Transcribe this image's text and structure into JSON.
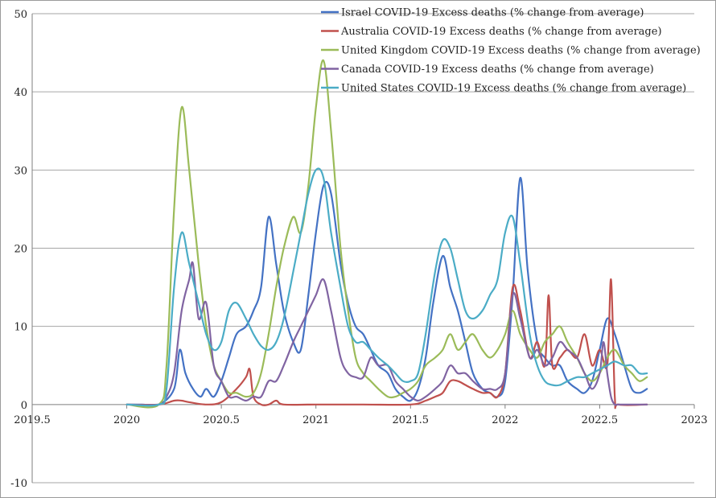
{
  "chart_data": {
    "type": "line",
    "title": "",
    "xlabel": "",
    "ylabel": "",
    "xlim": [
      2019.5,
      2023
    ],
    "ylim": [
      -10,
      50
    ],
    "x_ticks": [
      2019.5,
      2020,
      2020.5,
      2021,
      2021.5,
      2022,
      2022.5,
      2023
    ],
    "y_ticks": [
      -10,
      0,
      10,
      20,
      30,
      40,
      50
    ],
    "grid": "horizontal",
    "legend_position": "top-right",
    "series": [
      {
        "name": "Israel COVID-19 Excess deaths (% change from average)",
        "color": "#4472c4",
        "points": [
          [
            2020,
            0
          ],
          [
            2020.08,
            0
          ],
          [
            2020.17,
            0
          ],
          [
            2020.25,
            2
          ],
          [
            2020.28,
            7
          ],
          [
            2020.31,
            4
          ],
          [
            2020.35,
            2
          ],
          [
            2020.39,
            1
          ],
          [
            2020.42,
            2
          ],
          [
            2020.46,
            1
          ],
          [
            2020.5,
            3
          ],
          [
            2020.54,
            6
          ],
          [
            2020.58,
            9
          ],
          [
            2020.63,
            10
          ],
          [
            2020.67,
            12
          ],
          [
            2020.71,
            15
          ],
          [
            2020.75,
            24
          ],
          [
            2020.79,
            18
          ],
          [
            2020.83,
            12
          ],
          [
            2020.88,
            8
          ],
          [
            2020.92,
            7
          ],
          [
            2020.96,
            14
          ],
          [
            2021,
            22
          ],
          [
            2021.04,
            28
          ],
          [
            2021.08,
            27
          ],
          [
            2021.13,
            18
          ],
          [
            2021.17,
            13
          ],
          [
            2021.21,
            10
          ],
          [
            2021.25,
            9
          ],
          [
            2021.29,
            7
          ],
          [
            2021.33,
            5
          ],
          [
            2021.38,
            4
          ],
          [
            2021.42,
            2
          ],
          [
            2021.46,
            1
          ],
          [
            2021.5,
            0.5
          ],
          [
            2021.54,
            2
          ],
          [
            2021.58,
            6
          ],
          [
            2021.62,
            13
          ],
          [
            2021.67,
            19
          ],
          [
            2021.71,
            15
          ],
          [
            2021.75,
            12
          ],
          [
            2021.79,
            8
          ],
          [
            2021.83,
            4
          ],
          [
            2021.88,
            2
          ],
          [
            2021.92,
            1.5
          ],
          [
            2021.96,
            1
          ],
          [
            2022,
            3
          ],
          [
            2022.04,
            14
          ],
          [
            2022.08,
            29
          ],
          [
            2022.12,
            17
          ],
          [
            2022.17,
            8
          ],
          [
            2022.21,
            6
          ],
          [
            2022.25,
            5
          ],
          [
            2022.29,
            5
          ],
          [
            2022.33,
            3
          ],
          [
            2022.38,
            2
          ],
          [
            2022.42,
            1.5
          ],
          [
            2022.46,
            3
          ],
          [
            2022.5,
            7
          ],
          [
            2022.54,
            11
          ],
          [
            2022.58,
            9
          ],
          [
            2022.63,
            5
          ],
          [
            2022.67,
            2
          ],
          [
            2022.71,
            1.5
          ],
          [
            2022.75,
            2
          ]
        ]
      },
      {
        "name": "Australia COVID-19 Excess deaths (% change from average)",
        "color": "#c0504d",
        "points": [
          [
            2020,
            0
          ],
          [
            2020.17,
            0
          ],
          [
            2020.25,
            0.5
          ],
          [
            2020.29,
            0.5
          ],
          [
            2020.33,
            0.3
          ],
          [
            2020.42,
            0
          ],
          [
            2020.5,
            0.3
          ],
          [
            2020.58,
            2
          ],
          [
            2020.63,
            3.5
          ],
          [
            2020.65,
            4.5
          ],
          [
            2020.67,
            1
          ],
          [
            2020.71,
            0
          ],
          [
            2020.75,
            0
          ],
          [
            2020.79,
            0.5
          ],
          [
            2020.83,
            0
          ],
          [
            2021,
            0
          ],
          [
            2021.25,
            0
          ],
          [
            2021.5,
            0
          ],
          [
            2021.58,
            0.5
          ],
          [
            2021.63,
            1
          ],
          [
            2021.67,
            1.5
          ],
          [
            2021.71,
            3
          ],
          [
            2021.75,
            3
          ],
          [
            2021.79,
            2.5
          ],
          [
            2021.83,
            2
          ],
          [
            2021.88,
            1.5
          ],
          [
            2021.92,
            1.5
          ],
          [
            2021.96,
            1
          ],
          [
            2022,
            4
          ],
          [
            2022.04,
            15
          ],
          [
            2022.08,
            12
          ],
          [
            2022.13,
            6
          ],
          [
            2022.17,
            8
          ],
          [
            2022.21,
            5
          ],
          [
            2022.23,
            14
          ],
          [
            2022.25,
            5
          ],
          [
            2022.29,
            6
          ],
          [
            2022.33,
            7
          ],
          [
            2022.38,
            6
          ],
          [
            2022.42,
            9
          ],
          [
            2022.46,
            5
          ],
          [
            2022.5,
            7
          ],
          [
            2022.54,
            5
          ],
          [
            2022.56,
            16
          ],
          [
            2022.58,
            1
          ],
          [
            2022.6,
            0
          ],
          [
            2022.75,
            0
          ]
        ]
      },
      {
        "name": "United Kingdom COVID-19 Excess deaths (% change from average)",
        "color": "#9bbb59",
        "points": [
          [
            2020,
            0
          ],
          [
            2020.17,
            0
          ],
          [
            2020.21,
            5
          ],
          [
            2020.25,
            25
          ],
          [
            2020.29,
            38
          ],
          [
            2020.33,
            30
          ],
          [
            2020.38,
            18
          ],
          [
            2020.42,
            10
          ],
          [
            2020.46,
            5
          ],
          [
            2020.5,
            3
          ],
          [
            2020.54,
            1.5
          ],
          [
            2020.58,
            1.5
          ],
          [
            2020.63,
            1
          ],
          [
            2020.67,
            1.5
          ],
          [
            2020.71,
            4
          ],
          [
            2020.75,
            9
          ],
          [
            2020.79,
            15
          ],
          [
            2020.83,
            20
          ],
          [
            2020.88,
            24
          ],
          [
            2020.92,
            22
          ],
          [
            2020.96,
            28
          ],
          [
            2021,
            38
          ],
          [
            2021.04,
            44
          ],
          [
            2021.08,
            35
          ],
          [
            2021.13,
            20
          ],
          [
            2021.17,
            12
          ],
          [
            2021.21,
            6
          ],
          [
            2021.25,
            4
          ],
          [
            2021.29,
            3
          ],
          [
            2021.33,
            2
          ],
          [
            2021.38,
            1
          ],
          [
            2021.42,
            1
          ],
          [
            2021.46,
            1.5
          ],
          [
            2021.5,
            2
          ],
          [
            2021.54,
            3
          ],
          [
            2021.58,
            5
          ],
          [
            2021.63,
            6
          ],
          [
            2021.67,
            7
          ],
          [
            2021.71,
            9
          ],
          [
            2021.75,
            7
          ],
          [
            2021.79,
            8
          ],
          [
            2021.83,
            9
          ],
          [
            2021.88,
            7
          ],
          [
            2021.92,
            6
          ],
          [
            2021.96,
            7
          ],
          [
            2022,
            9
          ],
          [
            2022.04,
            12
          ],
          [
            2022.08,
            9
          ],
          [
            2022.13,
            7
          ],
          [
            2022.17,
            6
          ],
          [
            2022.21,
            8
          ],
          [
            2022.25,
            9
          ],
          [
            2022.29,
            10
          ],
          [
            2022.33,
            8
          ],
          [
            2022.38,
            6
          ],
          [
            2022.42,
            4
          ],
          [
            2022.46,
            3
          ],
          [
            2022.5,
            4
          ],
          [
            2022.54,
            6
          ],
          [
            2022.58,
            7
          ],
          [
            2022.63,
            5
          ],
          [
            2022.67,
            4
          ],
          [
            2022.71,
            3
          ],
          [
            2022.75,
            3.5
          ]
        ]
      },
      {
        "name": "Canada COVID-19 Excess deaths (% change from average)",
        "color": "#8064a2",
        "points": [
          [
            2020,
            0
          ],
          [
            2020.17,
            0
          ],
          [
            2020.21,
            1
          ],
          [
            2020.25,
            4
          ],
          [
            2020.29,
            12
          ],
          [
            2020.33,
            16
          ],
          [
            2020.35,
            18
          ],
          [
            2020.38,
            11
          ],
          [
            2020.42,
            13
          ],
          [
            2020.46,
            5
          ],
          [
            2020.5,
            3
          ],
          [
            2020.54,
            1
          ],
          [
            2020.58,
            1
          ],
          [
            2020.63,
            0.5
          ],
          [
            2020.67,
            1
          ],
          [
            2020.71,
            1
          ],
          [
            2020.75,
            3
          ],
          [
            2020.79,
            3
          ],
          [
            2020.83,
            5
          ],
          [
            2020.88,
            8
          ],
          [
            2020.92,
            10
          ],
          [
            2020.96,
            12
          ],
          [
            2021,
            14
          ],
          [
            2021.04,
            16
          ],
          [
            2021.08,
            12
          ],
          [
            2021.13,
            6
          ],
          [
            2021.17,
            4
          ],
          [
            2021.21,
            3.5
          ],
          [
            2021.25,
            3.5
          ],
          [
            2021.29,
            6
          ],
          [
            2021.33,
            5
          ],
          [
            2021.38,
            5
          ],
          [
            2021.42,
            3
          ],
          [
            2021.46,
            2
          ],
          [
            2021.5,
            1
          ],
          [
            2021.54,
            0.5
          ],
          [
            2021.58,
            1
          ],
          [
            2021.63,
            2
          ],
          [
            2021.67,
            3
          ],
          [
            2021.71,
            5
          ],
          [
            2021.75,
            4
          ],
          [
            2021.79,
            4
          ],
          [
            2021.83,
            3
          ],
          [
            2021.88,
            2
          ],
          [
            2021.92,
            2
          ],
          [
            2021.96,
            2
          ],
          [
            2022,
            4
          ],
          [
            2022.04,
            14
          ],
          [
            2022.08,
            11
          ],
          [
            2022.13,
            6
          ],
          [
            2022.17,
            7
          ],
          [
            2022.21,
            5
          ],
          [
            2022.25,
            6
          ],
          [
            2022.29,
            8
          ],
          [
            2022.33,
            7
          ],
          [
            2022.38,
            6
          ],
          [
            2022.42,
            4
          ],
          [
            2022.46,
            2
          ],
          [
            2022.5,
            4
          ],
          [
            2022.52,
            8
          ],
          [
            2022.54,
            4
          ],
          [
            2022.56,
            1
          ],
          [
            2022.58,
            0
          ],
          [
            2022.6,
            0
          ],
          [
            2022.75,
            0
          ]
        ]
      },
      {
        "name": "United States COVID-19 Excess deaths (% change from average)",
        "color": "#4bacc6",
        "points": [
          [
            2020,
            0
          ],
          [
            2020.17,
            0
          ],
          [
            2020.21,
            2
          ],
          [
            2020.25,
            15
          ],
          [
            2020.29,
            22
          ],
          [
            2020.33,
            18
          ],
          [
            2020.38,
            13
          ],
          [
            2020.42,
            9
          ],
          [
            2020.46,
            7
          ],
          [
            2020.5,
            8
          ],
          [
            2020.54,
            12
          ],
          [
            2020.58,
            13
          ],
          [
            2020.63,
            11
          ],
          [
            2020.67,
            9
          ],
          [
            2020.71,
            7.5
          ],
          [
            2020.75,
            7
          ],
          [
            2020.79,
            8
          ],
          [
            2020.83,
            11
          ],
          [
            2020.88,
            17
          ],
          [
            2020.92,
            22
          ],
          [
            2020.96,
            27
          ],
          [
            2021,
            30
          ],
          [
            2021.04,
            29
          ],
          [
            2021.08,
            22
          ],
          [
            2021.13,
            15
          ],
          [
            2021.17,
            10
          ],
          [
            2021.21,
            8
          ],
          [
            2021.25,
            8
          ],
          [
            2021.29,
            7
          ],
          [
            2021.33,
            6
          ],
          [
            2021.38,
            5
          ],
          [
            2021.42,
            4
          ],
          [
            2021.46,
            3
          ],
          [
            2021.5,
            3
          ],
          [
            2021.54,
            4
          ],
          [
            2021.58,
            9
          ],
          [
            2021.63,
            17
          ],
          [
            2021.67,
            21
          ],
          [
            2021.71,
            20
          ],
          [
            2021.75,
            16
          ],
          [
            2021.79,
            12
          ],
          [
            2021.83,
            11
          ],
          [
            2021.88,
            12
          ],
          [
            2021.92,
            14
          ],
          [
            2021.96,
            16
          ],
          [
            2022,
            22
          ],
          [
            2022.04,
            24
          ],
          [
            2022.08,
            18
          ],
          [
            2022.13,
            9
          ],
          [
            2022.17,
            5
          ],
          [
            2022.21,
            3
          ],
          [
            2022.25,
            2.5
          ],
          [
            2022.29,
            2.5
          ],
          [
            2022.33,
            3
          ],
          [
            2022.38,
            3.5
          ],
          [
            2022.42,
            3.5
          ],
          [
            2022.46,
            4
          ],
          [
            2022.5,
            4.5
          ],
          [
            2022.54,
            5
          ],
          [
            2022.58,
            5.5
          ],
          [
            2022.63,
            5
          ],
          [
            2022.67,
            5
          ],
          [
            2022.71,
            4
          ],
          [
            2022.75,
            4
          ]
        ]
      }
    ]
  }
}
